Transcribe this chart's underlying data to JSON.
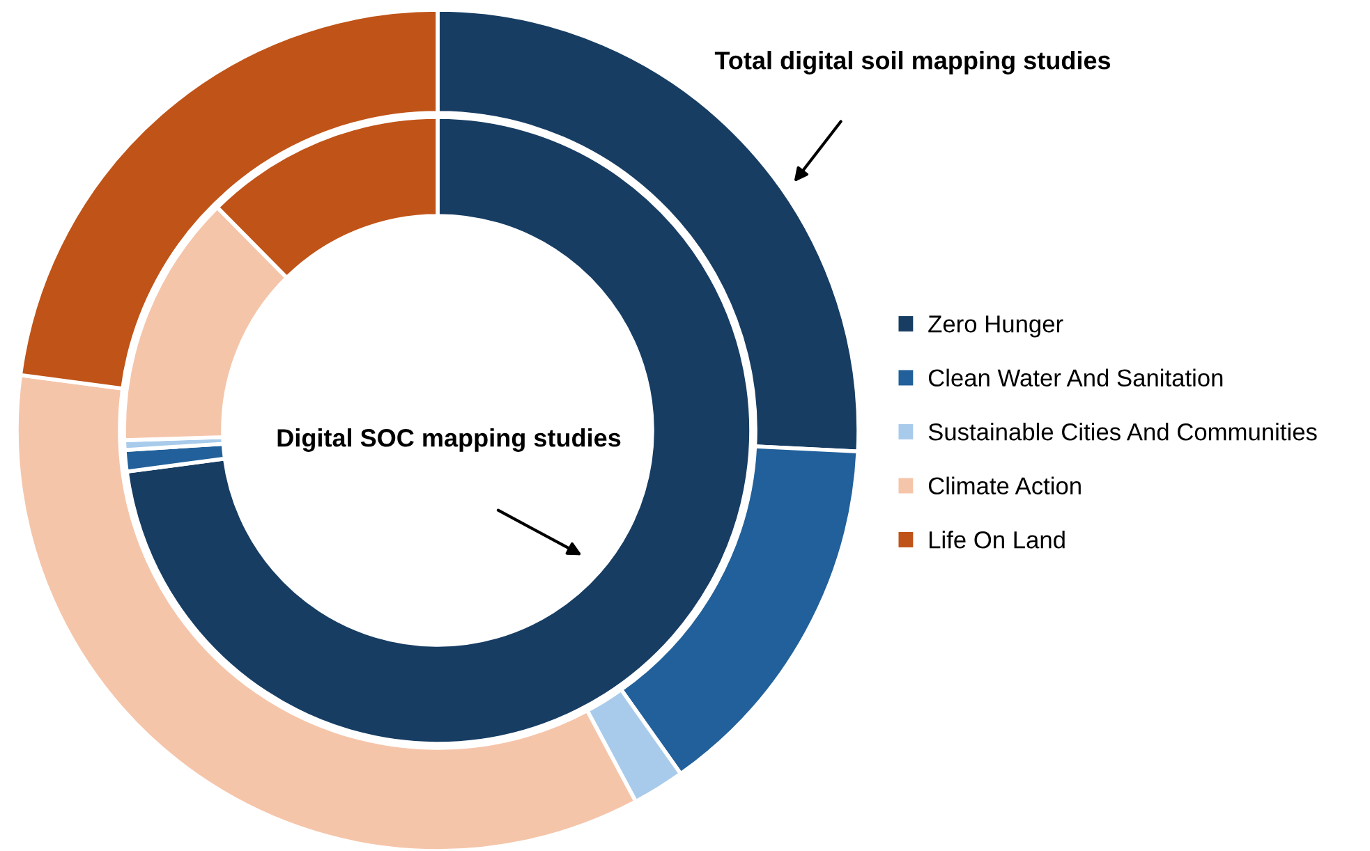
{
  "chart_data": {
    "type": "donut",
    "categories": [
      "Zero Hunger",
      "Clean Water And Sanitation",
      "Sustainable Cities And Communities",
      "Climate Action",
      "Life On Land"
    ],
    "colors": [
      "#173d63",
      "#21609a",
      "#a9cbeb",
      "#f5c5aa",
      "#c05317"
    ],
    "legend": "right",
    "series": [
      {
        "name": "Digital SOC mapping studies",
        "values": [
          72.9,
          1.1,
          0.5,
          13.1,
          12.4
        ]
      },
      {
        "name": "Total digital soil mapping studies",
        "values": [
          25.8,
          14.4,
          2.0,
          34.9,
          22.9
        ]
      }
    ]
  }
}
